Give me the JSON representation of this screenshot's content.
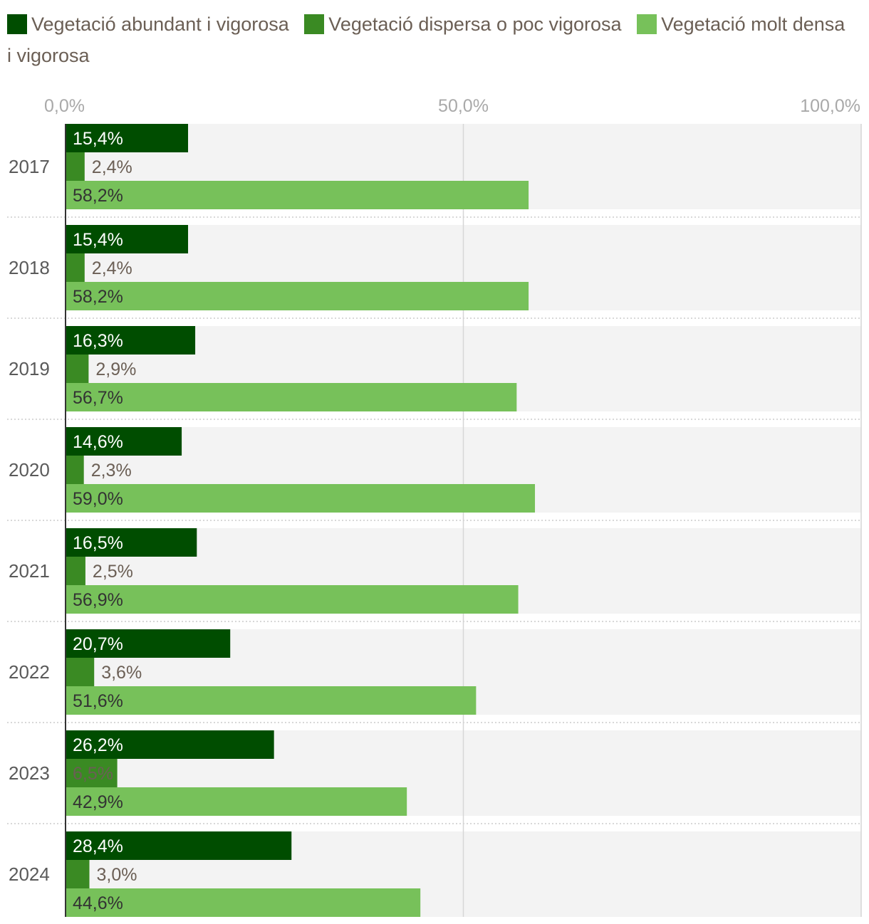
{
  "chart_data": {
    "type": "bar",
    "orientation": "horizontal",
    "title": "",
    "xlabel": "",
    "ylabel": "",
    "xlim": [
      0,
      100
    ],
    "ticks": [
      {
        "value": 0,
        "label": "0,0%"
      },
      {
        "value": 50,
        "label": "50,0%"
      },
      {
        "value": 100,
        "label": "100,0%"
      }
    ],
    "categories": [
      "2017",
      "2018",
      "2019",
      "2020",
      "2021",
      "2022",
      "2023",
      "2024"
    ],
    "series": [
      {
        "name": "Vegetació abundant i vigorosa",
        "color": "#004d00",
        "values": [
          15.4,
          15.4,
          16.3,
          14.6,
          16.5,
          20.7,
          26.2,
          28.4
        ],
        "labels": [
          "15,4%",
          "15,4%",
          "16,3%",
          "14,6%",
          "16,5%",
          "20,7%",
          "26,2%",
          "28,4%"
        ]
      },
      {
        "name": "Vegetació dispersa o poc vigorosa",
        "color": "#3a8a23",
        "values": [
          2.4,
          2.4,
          2.9,
          2.3,
          2.5,
          3.6,
          6.5,
          3.0
        ],
        "labels": [
          "2,4%",
          "2,4%",
          "2,9%",
          "2,3%",
          "2,5%",
          "3,6%",
          "6,5%",
          "3,0%"
        ]
      },
      {
        "name": "Vegetació molt densa i vigorosa",
        "color": "#77c15a",
        "values": [
          58.2,
          58.2,
          56.7,
          59.0,
          56.9,
          51.6,
          42.9,
          44.6
        ],
        "labels": [
          "58,2%",
          "58,2%",
          "56,7%",
          "59,0%",
          "56,9%",
          "51,6%",
          "42,9%",
          "44,6%"
        ]
      }
    ],
    "legend_position": "top",
    "grid": true
  }
}
